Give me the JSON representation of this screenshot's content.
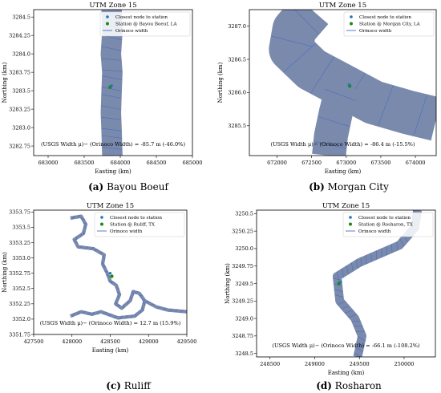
{
  "panels": [
    {
      "letter": "(a)",
      "caption": "Bayou Boeuf",
      "chart": {
        "type": "scatter",
        "title": "UTM Zone 15",
        "xlabel": "Easting (km)",
        "ylabel": "Northing (km)",
        "xlim": [
          682800,
          685000
        ],
        "ylim": [
          3282.62,
          3284.6
        ],
        "xticks": [
          683000,
          683500,
          684000,
          684500,
          685000
        ],
        "xtick_labels": [
          "683000",
          "683500",
          "684000",
          "684500",
          "685000"
        ],
        "yticks": [
          3282.75,
          3283.0,
          3283.25,
          3283.5,
          3283.75,
          3284.0,
          3284.25,
          3284.5
        ],
        "ytick_labels": [
          "3282.75",
          "3283.0",
          "3283.25",
          "3283.5",
          "3283.75",
          "3284.0",
          "3284.25",
          "3284.5"
        ],
        "legend": {
          "placement": "top-right",
          "entries": [
            "Closest node to station",
            "Station @ Bayou Boeuf, LA",
            "Orinoco width"
          ]
        },
        "annotation": "(USGS Width μ)− (Orinoco Width) = -85.7 m (-46.0%)",
        "river": [
          [
            683880,
            3284.6
          ],
          [
            683890,
            3284.3
          ],
          [
            683870,
            3284.0
          ],
          [
            683890,
            3283.75
          ],
          [
            683880,
            3283.5
          ],
          [
            683870,
            3283.2
          ],
          [
            683880,
            3282.95
          ],
          [
            683890,
            3282.62
          ]
        ],
        "river_width_km": 0.28,
        "station": [
          683860,
          3283.55
        ],
        "closest_node": [
          683880,
          3283.57
        ]
      }
    },
    {
      "letter": "(b)",
      "caption": "Morgan City",
      "chart": {
        "type": "scatter",
        "title": "UTM Zone 15",
        "xlabel": "Easting (km)",
        "ylabel": "Northing (km)",
        "xlim": [
          671600,
          674300
        ],
        "ylim": [
          3285.05,
          3287.25
        ],
        "xticks": [
          672000,
          672500,
          673000,
          673500,
          674000
        ],
        "xtick_labels": [
          "672000",
          "672500",
          "673000",
          "673500",
          "674000"
        ],
        "yticks": [
          3285.5,
          3286.0,
          3286.5,
          3287.0
        ],
        "ytick_labels": [
          "3285.5",
          "3286.0",
          "3286.5",
          "3287.0"
        ],
        "legend": {
          "placement": "top-right",
          "entries": [
            "Closest node to station",
            "Station @ Morgan City, LA",
            "Orinoco width"
          ]
        },
        "annotation": "(USGS Width μ)− (Orinoco Width) = -86.4 m (-15.5%)",
        "river": [
          [
            672500,
            3287.25
          ],
          [
            672250,
            3286.95
          ],
          [
            672200,
            3286.65
          ],
          [
            672500,
            3286.35
          ],
          [
            672950,
            3286.1
          ],
          [
            673400,
            3285.85
          ],
          [
            673900,
            3285.7
          ],
          [
            674300,
            3285.6
          ]
        ],
        "river_width_km": 0.65,
        "branch": [
          [
            672950,
            3286.1
          ],
          [
            672850,
            3285.7
          ],
          [
            672780,
            3285.35
          ],
          [
            672750,
            3285.05
          ]
        ],
        "branch_width_km": 0.5,
        "station": [
          673050,
          3286.1
        ],
        "closest_node": [
          673040,
          3286.12
        ]
      }
    },
    {
      "letter": "(c)",
      "caption": "Ruliff",
      "chart": {
        "type": "scatter",
        "title": "UTM Zone 15",
        "xlabel": "Easting (km)",
        "ylabel": "Northing (km)",
        "xlim": [
          427500,
          429500
        ],
        "ylim": [
          3351.75,
          3353.78
        ],
        "xticks": [
          427500,
          428000,
          428500,
          429000,
          429500
        ],
        "xtick_labels": [
          "427500",
          "428000",
          "428500",
          "429000",
          "429500"
        ],
        "yticks": [
          3351.75,
          3352.0,
          3352.25,
          3352.5,
          3352.75,
          3353.0,
          3353.25,
          3353.5,
          3353.75
        ],
        "ytick_labels": [
          "3351.75",
          "3352.0",
          "3352.25",
          "3352.5",
          "3352.75",
          "3353.0",
          "3353.25",
          "3353.5",
          "3353.75"
        ],
        "legend": {
          "placement": "top-right",
          "entries": [
            "Closest node to station",
            "Station @ Ruliff, TX",
            "Orinoco width"
          ]
        },
        "annotation": "(USGS Width μ)− (Orinoco Width) = 12.7 m (15.9%)",
        "river": [
          [
            427980,
            3353.65
          ],
          [
            428120,
            3353.68
          ],
          [
            428180,
            3353.55
          ],
          [
            428150,
            3353.4
          ],
          [
            428030,
            3353.3
          ],
          [
            428080,
            3353.18
          ],
          [
            428280,
            3353.15
          ],
          [
            428420,
            3353.05
          ],
          [
            428400,
            3352.9
          ],
          [
            428460,
            3352.75
          ],
          [
            428500,
            3352.62
          ],
          [
            428580,
            3352.55
          ],
          [
            428620,
            3352.4
          ],
          [
            428570,
            3352.25
          ],
          [
            428650,
            3352.18
          ],
          [
            428760,
            3352.3
          ],
          [
            428800,
            3352.45
          ],
          [
            428880,
            3352.42
          ],
          [
            428950,
            3352.3
          ],
          [
            428920,
            3352.15
          ],
          [
            428820,
            3352.05
          ],
          [
            428600,
            3352.02
          ],
          [
            428380,
            3352.12
          ],
          [
            428260,
            3352.08
          ],
          [
            428120,
            3352.12
          ],
          [
            427980,
            3352.05
          ]
        ],
        "river_width_km": 0.05,
        "river_tail": [
          [
            428950,
            3352.3
          ],
          [
            429100,
            3352.2
          ],
          [
            429250,
            3352.15
          ],
          [
            429500,
            3352.12
          ]
        ],
        "station": [
          428520,
          3352.7
        ],
        "closest_node": [
          428500,
          3352.75
        ]
      }
    },
    {
      "letter": "(d)",
      "caption": "Rosharon",
      "chart": {
        "type": "scatter",
        "title": "UTM Zone 15",
        "xlabel": "Easting (km)",
        "ylabel": "Northing (km)",
        "xlim": [
          248350,
          250350
        ],
        "ylim": [
          3248.45,
          3250.55
        ],
        "xticks": [
          248500,
          249000,
          249500,
          250000
        ],
        "xtick_labels": [
          "248500",
          "249000",
          "249500",
          "250000"
        ],
        "yticks": [
          3248.5,
          3248.75,
          3249.0,
          3249.25,
          3249.5,
          3249.75,
          3250.0,
          3250.25,
          3250.5
        ],
        "ytick_labels": [
          "3248.5",
          "3248.75",
          "3249.0",
          "3249.25",
          "3249.5",
          "3249.75",
          "3250.0",
          "3250.25",
          "3250.5"
        ],
        "legend": {
          "placement": "top-right",
          "entries": [
            "Closest node to station",
            "Station @ Rosharon, TX",
            "Orinoco width"
          ]
        },
        "annotation": "(USGS Width μ)− (Orinoco Width) = -66.1 m (-108.2%)",
        "river": [
          [
            250150,
            3250.55
          ],
          [
            250120,
            3250.3
          ],
          [
            249950,
            3250.05
          ],
          [
            249500,
            3249.8
          ],
          [
            249250,
            3249.6
          ],
          [
            249280,
            3249.25
          ],
          [
            249450,
            3249.0
          ],
          [
            249530,
            3248.75
          ],
          [
            249480,
            3248.45
          ]
        ],
        "river_width_km": 0.11,
        "station": [
          249270,
          3249.5
        ],
        "closest_node": [
          249290,
          3249.52
        ]
      }
    }
  ],
  "colors": {
    "river_fill": "#7a8aad",
    "width_line": "#4a6dbf",
    "closest_node": "#1f77b4",
    "station": "#1a8a1a"
  }
}
